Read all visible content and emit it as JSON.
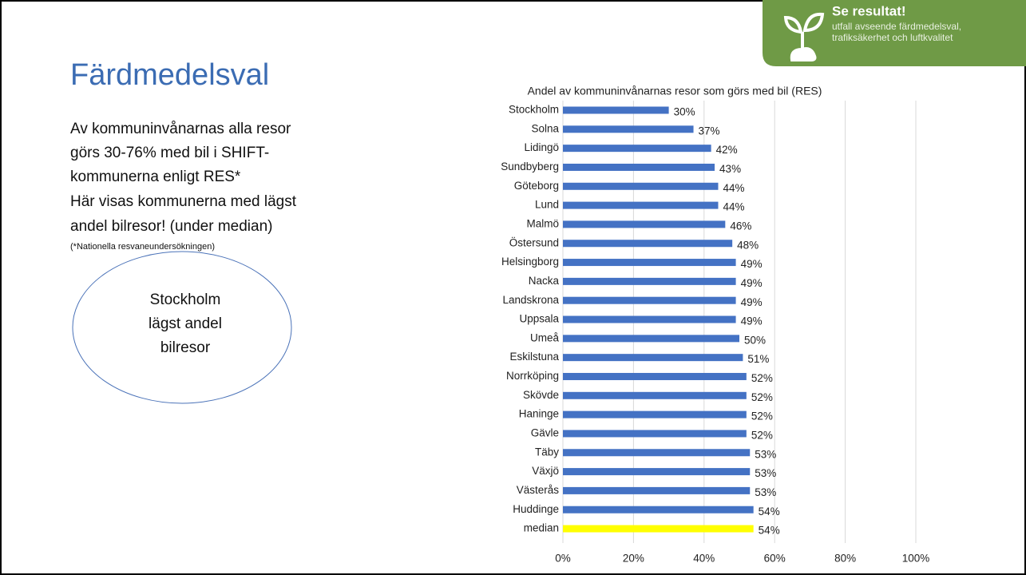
{
  "title": "Färdmedelsval",
  "body": [
    "Av kommuninvånarnas alla resor",
    "görs 30-76% med bil i SHIFT-",
    "kommunerna enligt RES*",
    "Här visas kommunerna med lägst",
    "andel bilresor! (under median)"
  ],
  "footnote": "(*Nationella resvaneundersökningen)",
  "callout": [
    "Stockholm",
    "lägst andel",
    "bilresor"
  ],
  "badge": {
    "title": "Se resultat!",
    "lines": [
      "utfall avseende färdmedelsval,",
      "trafiksäkerhet och luftkvalitet"
    ]
  },
  "chart_data": {
    "type": "hbar",
    "title": "Andel av kommuninvånarnas resor som görs med bil (RES)",
    "categories": [
      "Stockholm",
      "Solna",
      "Lidingö",
      "Sundbyberg",
      "Göteborg",
      "Lund",
      "Malmö",
      "Östersund",
      "Helsingborg",
      "Nacka",
      "Landskrona",
      "Uppsala",
      "Umeå",
      "Eskilstuna",
      "Norrköping",
      "Skövde",
      "Haninge",
      "Gävle",
      "Täby",
      "Växjö",
      "Västerås",
      "Huddinge",
      "median"
    ],
    "values": [
      30,
      37,
      42,
      43,
      44,
      44,
      46,
      48,
      49,
      49,
      49,
      49,
      50,
      51,
      52,
      52,
      52,
      52,
      53,
      53,
      53,
      54,
      54
    ],
    "value_labels": [
      "30%",
      "37%",
      "42%",
      "43%",
      "44%",
      "44%",
      "46%",
      "48%",
      "49%",
      "49%",
      "49%",
      "49%",
      "50%",
      "51%",
      "52%",
      "52%",
      "52%",
      "52%",
      "53%",
      "53%",
      "53%",
      "54%",
      "54%"
    ],
    "colors": [
      "#4472c4",
      "#4472c4",
      "#4472c4",
      "#4472c4",
      "#4472c4",
      "#4472c4",
      "#4472c4",
      "#4472c4",
      "#4472c4",
      "#4472c4",
      "#4472c4",
      "#4472c4",
      "#4472c4",
      "#4472c4",
      "#4472c4",
      "#4472c4",
      "#4472c4",
      "#4472c4",
      "#4472c4",
      "#4472c4",
      "#4472c4",
      "#4472c4",
      "#ffff00"
    ],
    "xlim": [
      0,
      100
    ],
    "xticks": [
      {
        "value": 0,
        "label": "0%"
      },
      {
        "value": 20,
        "label": "20%"
      },
      {
        "value": 40,
        "label": "40%"
      },
      {
        "value": 60,
        "label": "60%"
      },
      {
        "value": 80,
        "label": "80%"
      },
      {
        "value": 100,
        "label": "100%"
      }
    ],
    "grid": true
  }
}
